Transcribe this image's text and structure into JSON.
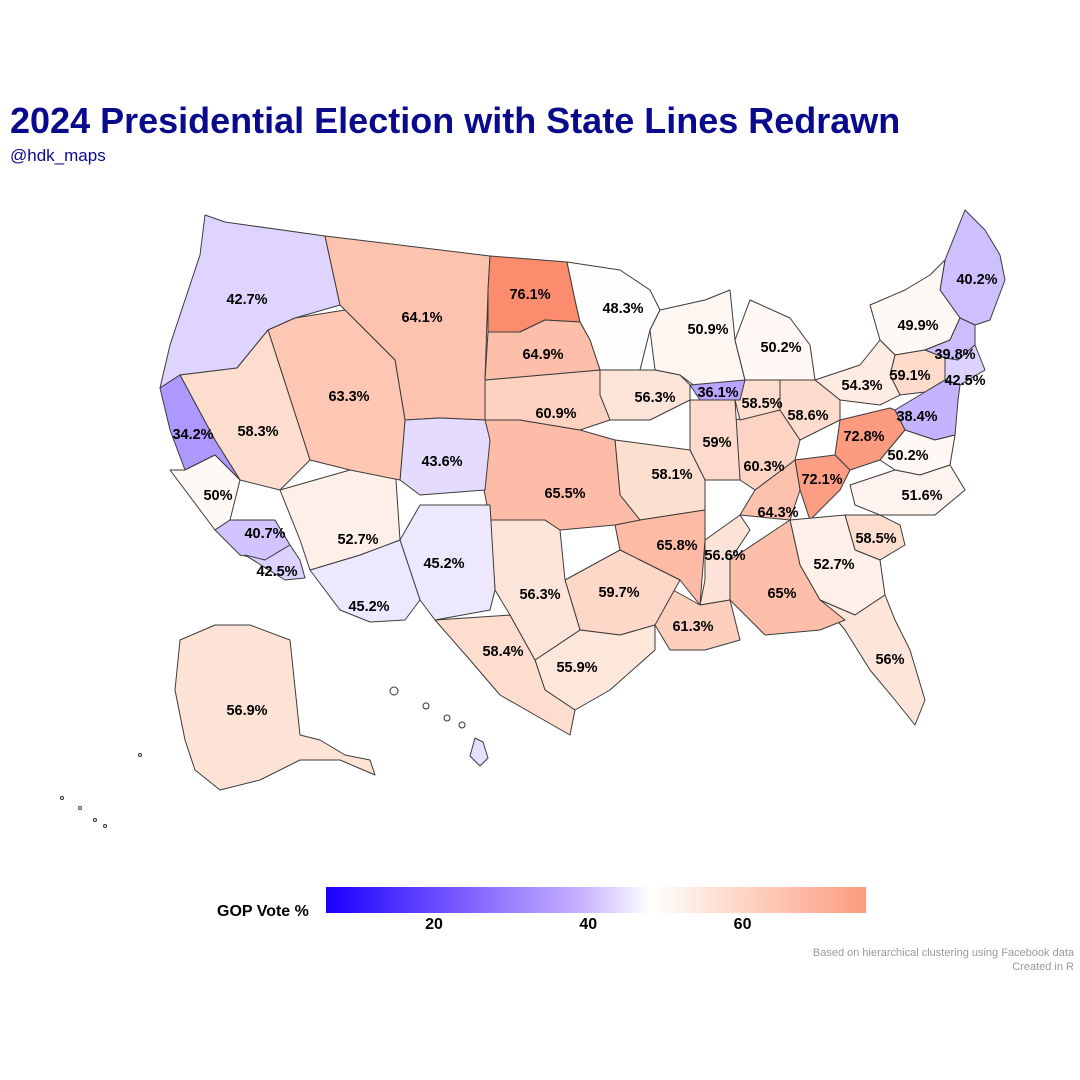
{
  "header": {
    "title": "2024 Presidential Election with State Lines Redrawn",
    "subtitle": "@hdk_maps"
  },
  "map": {
    "regions": [
      {
        "label": "42.7%",
        "value": 42.7
      },
      {
        "label": "64.1%",
        "value": 64.1
      },
      {
        "label": "76.1%",
        "value": 76.1
      },
      {
        "label": "48.3%",
        "value": 48.3
      },
      {
        "label": "50.9%",
        "value": 50.9
      },
      {
        "label": "50.2%",
        "value": 50.2
      },
      {
        "label": "40.2%",
        "value": 40.2
      },
      {
        "label": "49.9%",
        "value": 49.9
      },
      {
        "label": "39.8%",
        "value": 39.8
      },
      {
        "label": "42.5%",
        "value": 42.5
      },
      {
        "label": "59.1%",
        "value": 59.1
      },
      {
        "label": "54.3%",
        "value": 54.3
      },
      {
        "label": "38.4%",
        "value": 38.4
      },
      {
        "label": "72.8%",
        "value": 72.8
      },
      {
        "label": "72.1%",
        "value": 72.1
      },
      {
        "label": "50.2%",
        "value": 50.2
      },
      {
        "label": "51.6%",
        "value": 51.6
      },
      {
        "label": "58.5%",
        "value": 58.5
      },
      {
        "label": "52.7%",
        "value": 52.7
      },
      {
        "label": "56%",
        "value": 56.0
      },
      {
        "label": "65%",
        "value": 65.0
      },
      {
        "label": "56.6%",
        "value": 56.6
      },
      {
        "label": "64.3%",
        "value": 64.3
      },
      {
        "label": "60.3%",
        "value": 60.3
      },
      {
        "label": "58.6%",
        "value": 58.6
      },
      {
        "label": "58.5%",
        "value": 58.5
      },
      {
        "label": "59%",
        "value": 59.0
      },
      {
        "label": "36.1%",
        "value": 36.1
      },
      {
        "label": "56.3%",
        "value": 56.3
      },
      {
        "label": "58.1%",
        "value": 58.1
      },
      {
        "label": "65.8%",
        "value": 65.8
      },
      {
        "label": "61.3%",
        "value": 61.3
      },
      {
        "label": "59.7%",
        "value": 59.7
      },
      {
        "label": "55.9%",
        "value": 55.9
      },
      {
        "label": "58.4%",
        "value": 58.4
      },
      {
        "label": "56.3%",
        "value": 56.3
      },
      {
        "label": "65.5%",
        "value": 65.5
      },
      {
        "label": "60.9%",
        "value": 60.9
      },
      {
        "label": "64.9%",
        "value": 64.9
      },
      {
        "label": "43.6%",
        "value": 43.6
      },
      {
        "label": "45.2%",
        "value": 45.2
      },
      {
        "label": "45.2%",
        "value": 45.2
      },
      {
        "label": "52.7%",
        "value": 52.7
      },
      {
        "label": "63.3%",
        "value": 63.3
      },
      {
        "label": "58.3%",
        "value": 58.3
      },
      {
        "label": "34.2%",
        "value": 34.2
      },
      {
        "label": "50%",
        "value": 50.0
      },
      {
        "label": "40.7%",
        "value": 40.7
      },
      {
        "label": "42.5%",
        "value": 42.5
      },
      {
        "label": "56.9%",
        "value": 56.9
      },
      {
        "label": "",
        "value": 44.0
      }
    ]
  },
  "legend": {
    "title": "GOP Vote %",
    "ticks": [
      {
        "label": "20",
        "value": 20
      },
      {
        "label": "40",
        "value": 40
      },
      {
        "label": "60",
        "value": 60
      }
    ],
    "min": 6,
    "max": 76
  },
  "caption": {
    "line1": "Based on hierarchical clustering using Facebook data",
    "line2": "Created in R"
  }
}
